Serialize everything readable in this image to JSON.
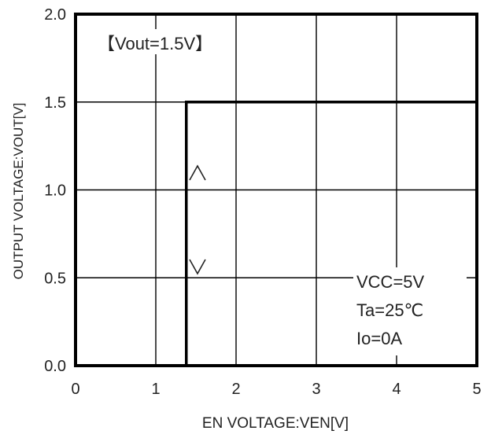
{
  "chart_data": {
    "type": "line",
    "title": "",
    "xlabel": "EN VOLTAGE:VEN[V]",
    "ylabel": "OUTPUT VOLTAGE:VOUT[V]",
    "xlim": [
      0,
      5
    ],
    "ylim": [
      0,
      2.0
    ],
    "x_ticks": [
      0,
      1,
      2,
      3,
      4,
      5
    ],
    "x_tick_labels": [
      "0",
      "1",
      "2",
      "3",
      "4",
      "5"
    ],
    "y_ticks": [
      0,
      0.5,
      1.0,
      1.5,
      2.0
    ],
    "y_tick_labels": [
      "0.0",
      "0.5",
      "1.0",
      "1.5",
      "2.0"
    ],
    "grid": true,
    "series": [
      {
        "values_xy": [
          [
            1.38,
            0
          ],
          [
            1.38,
            1.5
          ],
          [
            5,
            1.5
          ]
        ]
      }
    ],
    "annotations": {
      "condition_label": "【Vout=1.5V】",
      "conditions": [
        "VCC=5V",
        "Ta=25℃",
        "Io=0A"
      ],
      "rising_arrow": "^",
      "falling_arrow": "v"
    }
  }
}
